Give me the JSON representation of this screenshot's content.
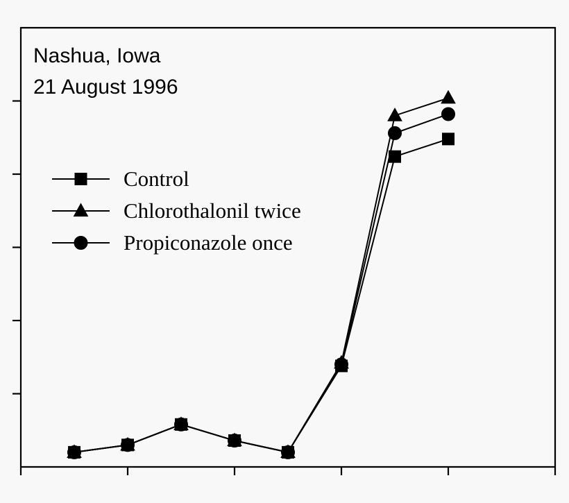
{
  "chart_data": {
    "type": "line",
    "title_lines": [
      "Nashua, Iowa",
      "21 August 1996"
    ],
    "xlabel": "",
    "ylabel": "",
    "x": [
      1,
      2,
      3,
      4,
      5,
      6,
      7,
      8
    ],
    "xlim": [
      0,
      10
    ],
    "ylim": [
      0,
      30
    ],
    "x_major_ticks": [
      0,
      2,
      4,
      6,
      8,
      10
    ],
    "y_major_ticks": [
      0,
      5,
      10,
      15,
      20,
      25,
      30
    ],
    "grid": false,
    "legend_position": "upper-left",
    "series": [
      {
        "name": "Control",
        "marker": "square",
        "values": [
          1.0,
          1.5,
          2.9,
          1.8,
          1.0,
          6.9,
          21.2,
          22.4
        ]
      },
      {
        "name": "Chlorothalonil twice",
        "marker": "triangle",
        "values": [
          1.0,
          1.5,
          2.9,
          1.8,
          1.0,
          7.1,
          24.0,
          25.2
        ]
      },
      {
        "name": "Propiconazole once",
        "marker": "circle",
        "values": [
          1.0,
          1.5,
          2.9,
          1.8,
          1.0,
          7.0,
          22.8,
          24.1
        ]
      }
    ]
  }
}
